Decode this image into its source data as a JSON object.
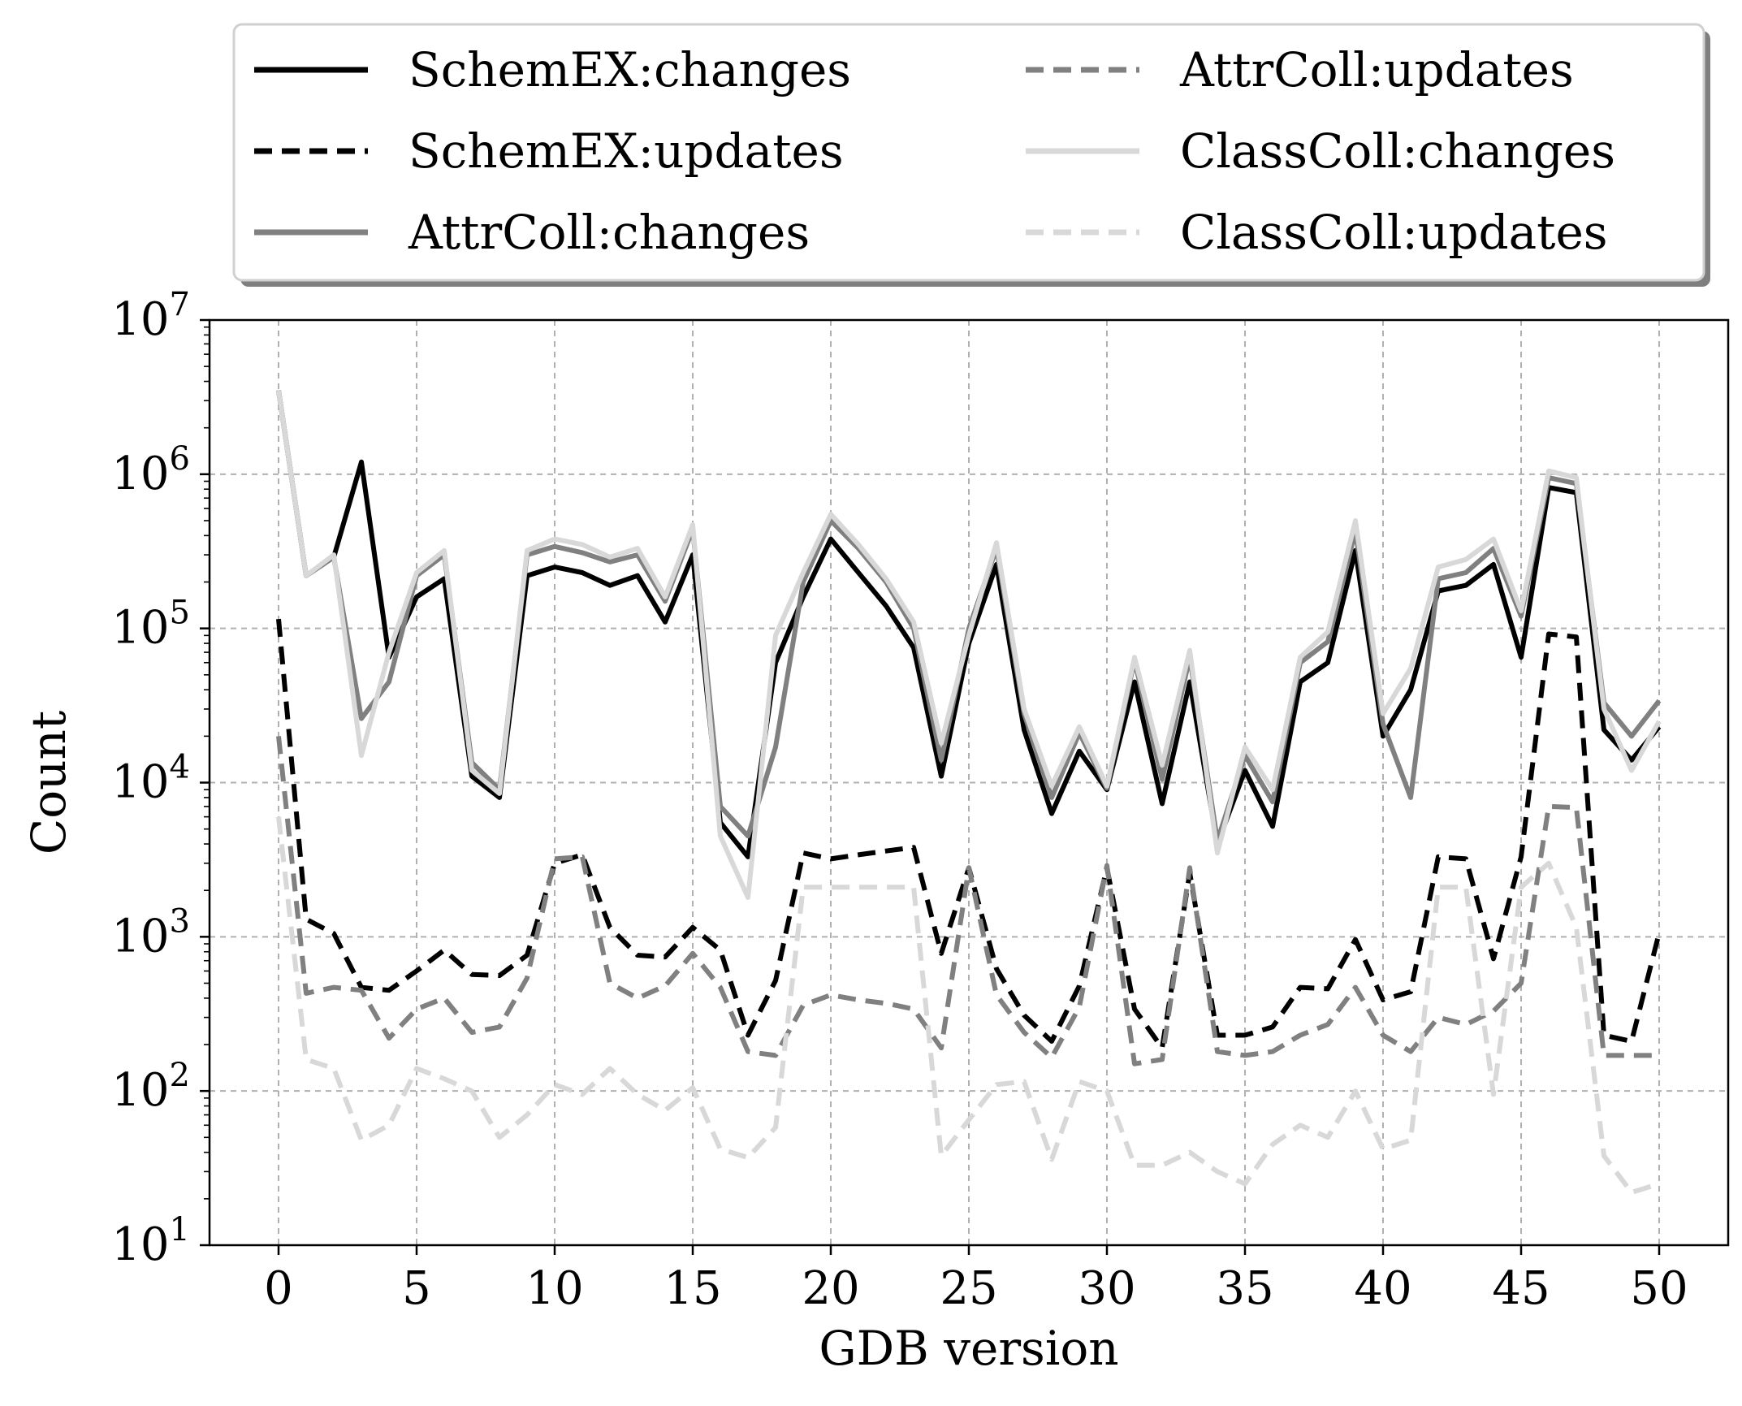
{
  "chart_data": {
    "type": "line",
    "title": "",
    "xlabel": "GDB version",
    "ylabel": "Count",
    "yscale": "log",
    "xlim": [
      -2.5,
      52.5
    ],
    "ylim": [
      10,
      10000000
    ],
    "grid": true,
    "legend_position": "top, above plot, 2 columns",
    "x_ticks": [
      0,
      5,
      10,
      15,
      20,
      25,
      30,
      35,
      40,
      45,
      50
    ],
    "x_tick_labels": [
      "0",
      "5",
      "10",
      "15",
      "20",
      "25",
      "30",
      "35",
      "40",
      "45",
      "50"
    ],
    "y_ticks": [
      10,
      100,
      1000,
      10000,
      100000,
      1000000,
      10000000
    ],
    "y_tick_labels": [
      {
        "base": "10",
        "exp": "1"
      },
      {
        "base": "10",
        "exp": "2"
      },
      {
        "base": "10",
        "exp": "3"
      },
      {
        "base": "10",
        "exp": "4"
      },
      {
        "base": "10",
        "exp": "5"
      },
      {
        "base": "10",
        "exp": "6"
      },
      {
        "base": "10",
        "exp": "7"
      }
    ],
    "x": [
      0,
      1,
      2,
      3,
      4,
      5,
      6,
      7,
      8,
      9,
      10,
      11,
      12,
      13,
      14,
      15,
      16,
      17,
      18,
      19,
      20,
      21,
      22,
      23,
      24,
      25,
      26,
      27,
      28,
      29,
      30,
      31,
      32,
      33,
      34,
      35,
      36,
      37,
      38,
      39,
      40,
      41,
      42,
      43,
      44,
      45,
      46,
      47,
      48,
      49,
      50
    ],
    "series": [
      {
        "name": "SchemEX:changes",
        "color": "#000000",
        "dash": "solid",
        "values": [
          3500000,
          220000,
          290000,
          1200000,
          65000,
          160000,
          210000,
          11000,
          8000,
          220000,
          250000,
          230000,
          190000,
          220000,
          110000,
          300000,
          5500,
          3300,
          60000,
          160000,
          380000,
          230000,
          140000,
          75000,
          11000,
          80000,
          260000,
          22000,
          6300,
          16000,
          9000,
          45000,
          7300,
          45000,
          4000,
          12000,
          5200,
          45000,
          60000,
          320000,
          20000,
          40000,
          175000,
          190000,
          260000,
          65000,
          820000,
          760000,
          22000,
          14000,
          23000
        ]
      },
      {
        "name": "SchemEX:updates",
        "color": "#000000",
        "dash": "dashed",
        "values": [
          115000,
          1300,
          1050,
          470,
          450,
          600,
          820,
          570,
          560,
          760,
          3000,
          3400,
          1150,
          760,
          740,
          1150,
          820,
          230,
          520,
          3500,
          3200,
          3400,
          3600,
          3800,
          780,
          2800,
          620,
          310,
          210,
          480,
          2800,
          340,
          190,
          2600,
          230,
          230,
          260,
          470,
          460,
          960,
          390,
          440,
          3300,
          3200,
          720,
          3300,
          92000,
          88000,
          230,
          210,
          1060
        ]
      },
      {
        "name": "AttrColl:changes",
        "color": "#808080",
        "dash": "solid",
        "values": [
          3500000,
          220000,
          290000,
          26000,
          45000,
          220000,
          300000,
          13500,
          9000,
          300000,
          340000,
          310000,
          270000,
          300000,
          150000,
          440000,
          7000,
          4500,
          17000,
          200000,
          500000,
          330000,
          200000,
          100000,
          14000,
          100000,
          330000,
          28000,
          8000,
          21000,
          9200,
          62000,
          10500,
          65000,
          4200,
          15000,
          7500,
          60000,
          82000,
          430000,
          24000,
          8000,
          210000,
          230000,
          330000,
          120000,
          950000,
          870000,
          33000,
          20000,
          34000
        ]
      },
      {
        "name": "AttrColl:updates",
        "color": "#808080",
        "dash": "dashed",
        "values": [
          20000,
          430,
          470,
          450,
          220,
          340,
          400,
          240,
          260,
          540,
          3200,
          3300,
          500,
          400,
          480,
          780,
          470,
          180,
          170,
          360,
          420,
          390,
          370,
          340,
          190,
          2800,
          420,
          240,
          165,
          350,
          2900,
          150,
          160,
          2800,
          180,
          170,
          180,
          230,
          270,
          470,
          230,
          180,
          300,
          270,
          330,
          500,
          7000,
          6900,
          170,
          170,
          170
        ]
      },
      {
        "name": "ClassColl:changes",
        "color": "#d8d8d8",
        "dash": "solid",
        "values": [
          3500000,
          220000,
          300000,
          15000,
          70000,
          230000,
          320000,
          12000,
          8500,
          320000,
          380000,
          350000,
          290000,
          330000,
          160000,
          470000,
          4500,
          1800,
          90000,
          230000,
          550000,
          350000,
          210000,
          110000,
          18000,
          90000,
          360000,
          30000,
          9500,
          23000,
          9500,
          65000,
          13000,
          72000,
          3500,
          17000,
          9000,
          65000,
          95000,
          500000,
          28000,
          55000,
          250000,
          280000,
          380000,
          130000,
          1050000,
          950000,
          30000,
          12000,
          25000
        ]
      },
      {
        "name": "ClassColl:updates",
        "color": "#d8d8d8",
        "dash": "dashed",
        "values": [
          6000,
          160,
          140,
          48,
          60,
          140,
          120,
          100,
          50,
          70,
          110,
          95,
          140,
          95,
          75,
          105,
          42,
          37,
          58,
          2100,
          2100,
          2100,
          2100,
          2100,
          38,
          65,
          110,
          115,
          36,
          115,
          100,
          33,
          33,
          40,
          30,
          25,
          45,
          60,
          50,
          100,
          42,
          48,
          2100,
          2100,
          95,
          2100,
          3000,
          1150,
          38,
          22,
          25
        ]
      }
    ]
  }
}
